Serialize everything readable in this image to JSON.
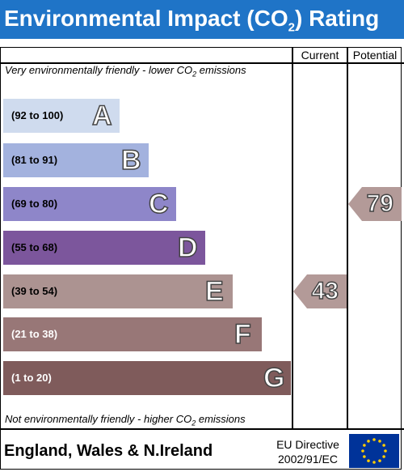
{
  "header": {
    "title_prefix": "Environmental Impact (CO",
    "title_sub": "2",
    "title_suffix": ") Rating"
  },
  "columns": {
    "current": "Current",
    "potential": "Potential"
  },
  "captions": {
    "top_prefix": "Very environmentally friendly - lower CO",
    "top_sub": "2",
    "top_suffix": " emissions",
    "bottom_prefix": "Not environmentally friendly - higher CO",
    "bottom_sub": "2",
    "bottom_suffix": " emissions"
  },
  "footer": {
    "region": "England, Wales & N.Ireland",
    "directive_line1": "EU Directive",
    "directive_line2": "2002/91/EC"
  },
  "colors": {
    "header_bg": "#1f74c7",
    "arrow": "#b39a98",
    "flag": "#003399",
    "stars": "#ffcc00"
  },
  "chart_data": {
    "type": "bar",
    "categories": [
      "A",
      "B",
      "C",
      "D",
      "E",
      "F",
      "G"
    ],
    "ranges": [
      "(92 to 100)",
      "(81 to 91)",
      "(69 to 80)",
      "(55 to 68)",
      "(39 to 54)",
      "(21 to 38)",
      "(1 to 20)"
    ],
    "colors": [
      "#cfdbee",
      "#a3b2de",
      "#8e86c9",
      "#7c569c",
      "#ac9391",
      "#987777",
      "#7f5b5b"
    ],
    "current": 43,
    "potential": 79
  }
}
